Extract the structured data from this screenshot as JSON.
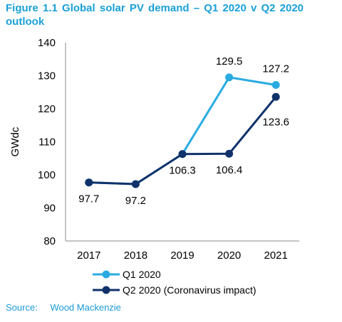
{
  "chart_data": {
    "type": "line",
    "title": "Figure 1.1  Global solar PV demand – Q1 2020 v Q2 2020 outlook",
    "ylabel": "GWdc",
    "xlabel": "",
    "ylim": [
      80,
      140
    ],
    "yticks": [
      80,
      90,
      100,
      110,
      120,
      130,
      140
    ],
    "categories": [
      "2017",
      "2018",
      "2019",
      "2020",
      "2021"
    ],
    "grid": false,
    "legend_position": "bottom",
    "series": [
      {
        "name": "Q1 2020",
        "color": "#29abe2",
        "values": [
          97.7,
          97.2,
          106.3,
          129.5,
          127.2
        ],
        "labels": [
          "",
          "",
          "",
          "129.5",
          "127.2"
        ]
      },
      {
        "name": "Q2 2020 (Coronavirus impact)",
        "color": "#10326b",
        "values": [
          97.7,
          97.2,
          106.3,
          106.4,
          123.6
        ],
        "labels": [
          "97.7",
          "97.2",
          "106.3",
          "106.4",
          "123.6"
        ]
      }
    ],
    "source_label": "Source:",
    "source_value": "Wood Mackenzie"
  }
}
